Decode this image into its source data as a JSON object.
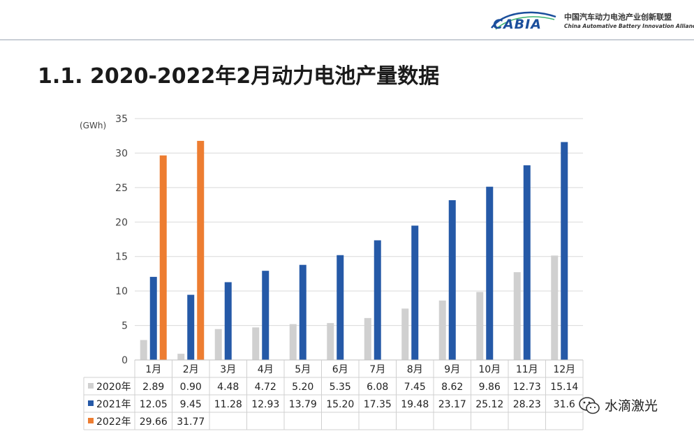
{
  "header": {
    "logo_text": "CABIA",
    "org_name_cn": "中国汽车动力电池产业创新联盟",
    "org_name_en": "China Automative Battery Innovation Alliance"
  },
  "page_title": "1.1. 2020-2022年2月动力电池产量数据",
  "watermark": {
    "text": "水滴激光",
    "icon": "wechat-icon"
  },
  "chart_data": {
    "type": "bar",
    "unit_label": "(GWh)",
    "categories": [
      "1月",
      "2月",
      "3月",
      "4月",
      "5月",
      "6月",
      "7月",
      "8月",
      "9月",
      "10月",
      "11月",
      "12月"
    ],
    "ylim": [
      0,
      35
    ],
    "yticks": [
      0,
      5,
      10,
      15,
      20,
      25,
      30,
      35
    ],
    "grid": true,
    "legend_placement": "table-left",
    "series": [
      {
        "name": "2020年",
        "color": "#d0d0d0",
        "values": [
          2.89,
          0.9,
          4.48,
          4.72,
          5.2,
          5.35,
          6.08,
          7.45,
          8.62,
          9.86,
          12.73,
          15.14
        ],
        "labels": [
          "2.89",
          "0.90",
          "4.48",
          "4.72",
          "5.20",
          "5.35",
          "6.08",
          "7.45",
          "8.62",
          "9.86",
          "12.73",
          "15.14"
        ]
      },
      {
        "name": "2021年",
        "color": "#2559a7",
        "values": [
          12.05,
          9.45,
          11.28,
          12.93,
          13.79,
          15.2,
          17.35,
          19.48,
          23.17,
          25.12,
          28.23,
          31.6
        ],
        "labels": [
          "12.05",
          "9.45",
          "11.28",
          "12.93",
          "13.79",
          "15.20",
          "17.35",
          "19.48",
          "23.17",
          "25.12",
          "28.23",
          "31.6"
        ]
      },
      {
        "name": "2022年",
        "color": "#ed7d31",
        "values": [
          29.66,
          31.77,
          null,
          null,
          null,
          null,
          null,
          null,
          null,
          null,
          null,
          null
        ],
        "labels": [
          "29.66",
          "31.77",
          "",
          "",
          "",
          "",
          "",
          "",
          "",
          "",
          "",
          ""
        ]
      }
    ]
  }
}
